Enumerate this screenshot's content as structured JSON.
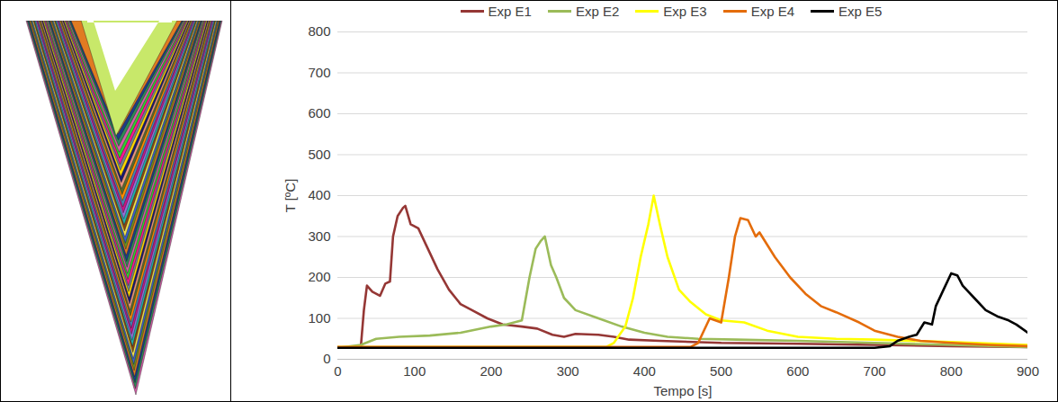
{
  "chart_data": {
    "type": "line",
    "xlabel": "Tempo [s]",
    "ylabel": "T [ºC]",
    "xlim": [
      0,
      900
    ],
    "xticks": [
      0,
      100,
      200,
      300,
      400,
      500,
      600,
      700,
      800,
      900
    ],
    "ylim": [
      0,
      800
    ],
    "yticks": [
      0,
      100,
      200,
      300,
      400,
      500,
      600,
      700,
      800
    ],
    "grid": true,
    "legend": "top",
    "series": [
      {
        "name": "Exp E1",
        "color": "#953735",
        "x": [
          0,
          30,
          34,
          38,
          45,
          55,
          62,
          68,
          72,
          78,
          85,
          88,
          95,
          105,
          115,
          130,
          145,
          160,
          175,
          195,
          215,
          240,
          260,
          280,
          295,
          310,
          340,
          360,
          380,
          420,
          500,
          600,
          700,
          800,
          900
        ],
        "values": [
          28,
          30,
          120,
          180,
          165,
          155,
          185,
          190,
          300,
          350,
          370,
          375,
          330,
          320,
          280,
          220,
          170,
          135,
          120,
          100,
          85,
          80,
          75,
          60,
          55,
          62,
          60,
          55,
          48,
          45,
          40,
          38,
          35,
          32,
          30
        ]
      },
      {
        "name": "Exp E2",
        "color": "#9BBB59",
        "x": [
          0,
          30,
          50,
          80,
          120,
          160,
          200,
          220,
          240,
          250,
          258,
          265,
          270,
          278,
          285,
          295,
          310,
          340,
          370,
          400,
          430,
          470,
          520,
          600,
          700,
          800,
          900
        ],
        "values": [
          28,
          35,
          50,
          55,
          58,
          65,
          80,
          85,
          95,
          200,
          270,
          290,
          300,
          230,
          200,
          150,
          120,
          100,
          80,
          65,
          55,
          50,
          48,
          45,
          40,
          35,
          30
        ]
      },
      {
        "name": "Exp E3",
        "color": "#FFFF00",
        "x": [
          0,
          350,
          360,
          375,
          385,
          395,
          405,
          412,
          420,
          430,
          445,
          460,
          480,
          500,
          530,
          560,
          600,
          650,
          700,
          800,
          900
        ],
        "values": [
          30,
          30,
          40,
          80,
          150,
          250,
          330,
          400,
          330,
          250,
          170,
          140,
          110,
          95,
          90,
          70,
          55,
          50,
          48,
          42,
          35
        ]
      },
      {
        "name": "Exp E4",
        "color": "#E46C0A",
        "x": [
          0,
          460,
          470,
          485,
          500,
          510,
          518,
          525,
          535,
          545,
          550,
          570,
          590,
          610,
          630,
          650,
          680,
          700,
          730,
          760,
          800,
          850,
          900
        ],
        "values": [
          30,
          30,
          40,
          100,
          90,
          200,
          300,
          345,
          340,
          300,
          310,
          250,
          200,
          160,
          130,
          115,
          90,
          70,
          55,
          45,
          40,
          35,
          32
        ]
      },
      {
        "name": "Exp E5",
        "color": "#000000",
        "x": [
          0,
          700,
          720,
          730,
          745,
          755,
          765,
          775,
          780,
          790,
          800,
          808,
          815,
          830,
          845,
          860,
          875,
          885,
          900
        ],
        "values": [
          28,
          28,
          32,
          45,
          55,
          60,
          90,
          85,
          130,
          170,
          210,
          205,
          180,
          150,
          120,
          105,
          95,
          85,
          65
        ]
      }
    ]
  }
}
